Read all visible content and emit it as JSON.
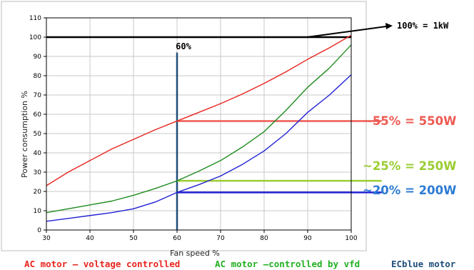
{
  "chart_data": {
    "type": "line",
    "xlabel": "Fan speed %",
    "ylabel": "Power consumption %",
    "xlim": [
      30,
      100
    ],
    "ylim": [
      0,
      110
    ],
    "x_ticks": [
      30,
      40,
      50,
      60,
      70,
      80,
      90,
      100
    ],
    "y_ticks": [
      0,
      10,
      20,
      30,
      40,
      50,
      60,
      70,
      80,
      90,
      100,
      110
    ],
    "grid": true,
    "series": [
      {
        "name": "AC motor – voltage controlled",
        "color": "#e8251f",
        "x": [
          30,
          35,
          40,
          45,
          50,
          55,
          60,
          65,
          70,
          75,
          80,
          85,
          90,
          95,
          100
        ],
        "y": [
          23,
          30,
          36,
          42,
          47,
          52,
          56.5,
          61,
          65.5,
          70.5,
          76,
          82,
          88.5,
          94.5,
          101
        ]
      },
      {
        "name": "AC motor –controlled by vfd",
        "color": "#1e8c1e",
        "x": [
          30,
          35,
          40,
          45,
          50,
          55,
          60,
          65,
          70,
          75,
          80,
          85,
          90,
          95,
          100
        ],
        "y": [
          9,
          11,
          13,
          15,
          18,
          21.5,
          25.5,
          30.5,
          36,
          43,
          51,
          62,
          74,
          84,
          96
        ]
      },
      {
        "name": "ECblue motor",
        "color": "#2121d4",
        "x": [
          30,
          35,
          40,
          45,
          50,
          55,
          60,
          65,
          70,
          75,
          80,
          85,
          90,
          95,
          100
        ],
        "y": [
          4.5,
          6,
          7.5,
          9,
          11,
          14.5,
          19.5,
          23.5,
          28,
          34,
          41,
          50,
          61,
          70,
          80.5
        ]
      }
    ],
    "reference_lines": [
      {
        "kind": "horizontal",
        "y": 100,
        "x_from": 30,
        "x_to": 100,
        "color": "#000000"
      },
      {
        "kind": "vertical",
        "x": 60,
        "y_from": 0,
        "y_to": 92,
        "color": "#1f4e79"
      },
      {
        "kind": "horizontal",
        "y": 56.5,
        "x_from": 60,
        "x_to": 107,
        "color": "#ee5a52"
      },
      {
        "kind": "horizontal",
        "y": 25.5,
        "x_from": 60,
        "x_to": 107,
        "color": "#9acd32"
      },
      {
        "kind": "horizontal",
        "y": 19.5,
        "x_from": 60,
        "x_to": 107,
        "color": "#2121d4"
      }
    ],
    "annotations": {
      "speed_marker": "60%",
      "max_power": "100% = 1kW",
      "ac_voltage_result": {
        "text": "~55% = 550W",
        "color": "#ee5a52"
      },
      "ac_vfd_result": {
        "text": "~25% = 250W",
        "color": "#9acd32"
      },
      "ecblue_result": {
        "text": "~20% = 200W",
        "color": "#2d7bd3"
      }
    },
    "legend": [
      {
        "label": "AC motor – voltage controlled",
        "color": "#e8251f"
      },
      {
        "label": "AC motor –controlled by vfd",
        "color": "#22b022"
      },
      {
        "label": "ECblue motor",
        "color": "#1f4e79"
      }
    ]
  }
}
